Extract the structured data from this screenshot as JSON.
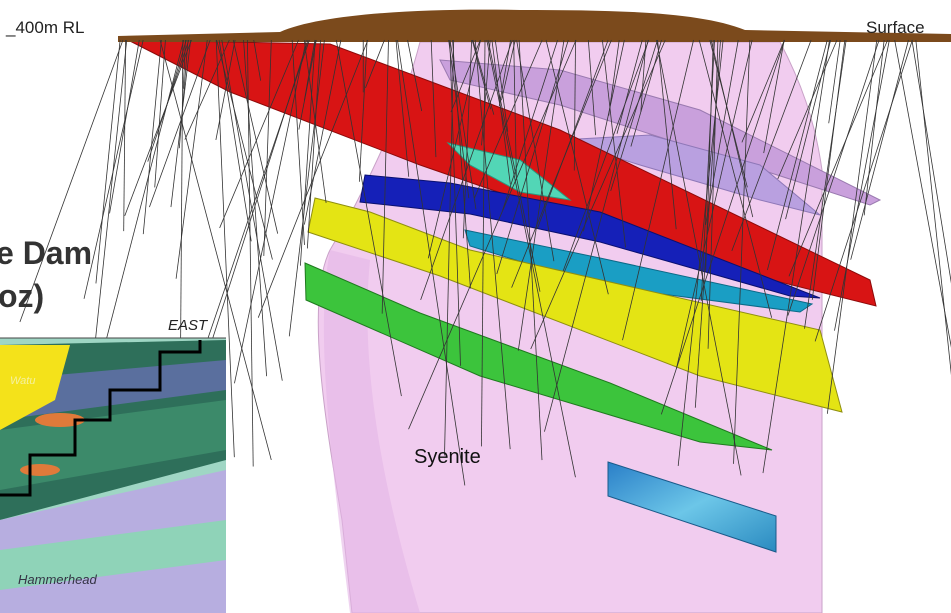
{
  "labels": {
    "rl": "_400m RL",
    "surface": "Surface",
    "syenite": "Syenite"
  },
  "title": {
    "line1": "e Dam",
    "line2": "oz)"
  },
  "inset": {
    "direction": "EAST",
    "labels": [
      "Watu",
      "Hammerhead"
    ]
  }
}
